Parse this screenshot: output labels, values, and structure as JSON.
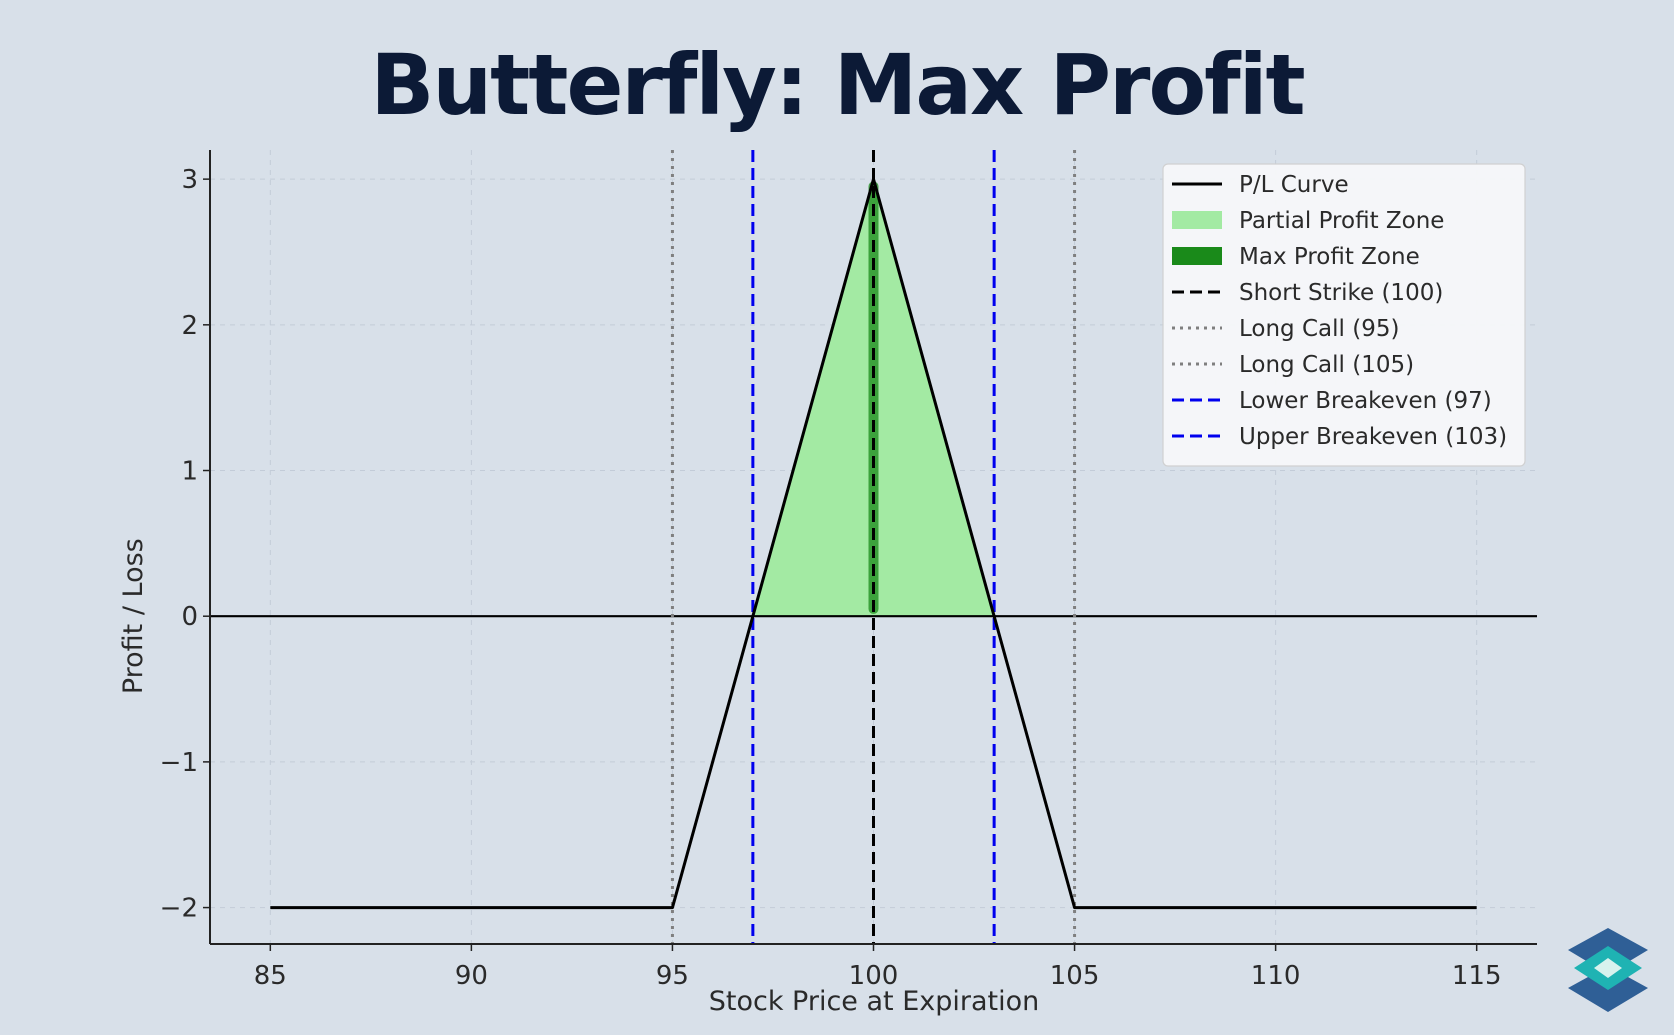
{
  "title": "Butterfly: Max Profit",
  "chart_data": {
    "type": "line",
    "title": "Butterfly: Max Profit",
    "xlabel": "Stock Price at Expiration",
    "ylabel": "Profit / Loss",
    "xlim": [
      83.5,
      116.5
    ],
    "ylim": [
      -2.25,
      3.2
    ],
    "xticks": [
      85,
      90,
      95,
      100,
      105,
      110,
      115
    ],
    "yticks": [
      -2,
      -1,
      0,
      1,
      2,
      3
    ],
    "xtick_labels": [
      "85",
      "90",
      "95",
      "100",
      "105",
      "110",
      "115"
    ],
    "ytick_labels": [
      "−2",
      "−1",
      "0",
      "1",
      "2",
      "3"
    ],
    "grid": true,
    "legend_position": "top-right",
    "series": [
      {
        "name": "P/L Curve",
        "color": "#000000",
        "x": [
          85,
          95,
          100,
          105,
          115
        ],
        "y": [
          -2,
          -2,
          3,
          -2,
          -2
        ]
      }
    ],
    "zones": [
      {
        "name": "Partial Profit Zone",
        "color": "#a3eaa3",
        "x_range": [
          97,
          103
        ]
      },
      {
        "name": "Max Profit Zone",
        "color": "#1a8a1a",
        "x": 100,
        "y_range": [
          0.05,
          2.95
        ]
      }
    ],
    "vlines": [
      {
        "name": "Short Strike (100)",
        "x": 100,
        "color": "#000000",
        "style": "dashed"
      },
      {
        "name": "Long Call (95)",
        "x": 95,
        "color": "#7f7f7f",
        "style": "dotted"
      },
      {
        "name": "Long Call (105)",
        "x": 105,
        "color": "#7f7f7f",
        "style": "dotted"
      },
      {
        "name": "Lower Breakeven (97)",
        "x": 97,
        "color": "#0000ee",
        "style": "dashed"
      },
      {
        "name": "Upper Breakeven (103)",
        "x": 103,
        "color": "#0000ee",
        "style": "dashed"
      }
    ],
    "hline": {
      "y": 0,
      "color": "#000000"
    },
    "legend": [
      {
        "label": "P/L Curve",
        "kind": "line",
        "color": "#000000",
        "style": "solid"
      },
      {
        "label": "Partial Profit Zone",
        "kind": "patch",
        "color": "#a3eaa3"
      },
      {
        "label": "Max Profit Zone",
        "kind": "patch",
        "color": "#1a8a1a"
      },
      {
        "label": "Short Strike (100)",
        "kind": "line",
        "color": "#000000",
        "style": "dashed"
      },
      {
        "label": "Long Call (95)",
        "kind": "line",
        "color": "#7f7f7f",
        "style": "dotted"
      },
      {
        "label": "Long Call (105)",
        "kind": "line",
        "color": "#7f7f7f",
        "style": "dotted"
      },
      {
        "label": "Lower Breakeven (97)",
        "kind": "line",
        "color": "#0000ee",
        "style": "dashed"
      },
      {
        "label": "Upper Breakeven (103)",
        "kind": "line",
        "color": "#0000ee",
        "style": "dashed"
      }
    ]
  },
  "logo": {
    "name": "layered-diamond-logo",
    "colors": [
      "#2f5f96",
      "#1fb3b3",
      "#d8f2ee"
    ]
  }
}
